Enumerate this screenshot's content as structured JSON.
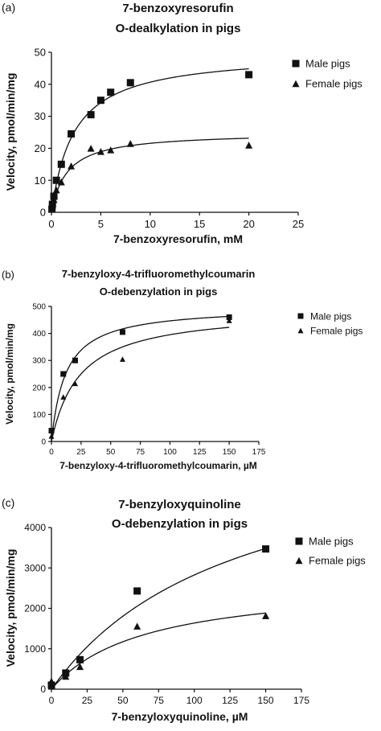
{
  "chart_data": [
    {
      "type": "scatter",
      "panel_label": "(a)",
      "title": [
        "7-benzoxyresorufin",
        "O-dealkylation in pigs"
      ],
      "xlabel": "7-benzoxyresorufin, mM",
      "ylabel": "Velocity, pmol/min/mg",
      "xlim": [
        0,
        25
      ],
      "ylim": [
        0,
        50
      ],
      "xticks": [
        0,
        5,
        10,
        15,
        20,
        25
      ],
      "yticks": [
        0,
        10,
        20,
        30,
        40,
        50
      ],
      "grid": false,
      "legend_position": "top-right",
      "fit": "michaelis-menten",
      "series": [
        {
          "name": "Male pigs",
          "marker": "square",
          "x": [
            0.05,
            0.1,
            0.25,
            0.5,
            1,
            2,
            4,
            5,
            6,
            8,
            20
          ],
          "y": [
            1,
            2.5,
            5,
            10,
            15,
            24.5,
            30.5,
            35,
            37.5,
            40.5,
            43
          ],
          "fit_vmax": 50,
          "fit_km": 2.3
        },
        {
          "name": "Female pigs",
          "marker": "triangle",
          "x": [
            0.05,
            0.1,
            0.25,
            0.5,
            1,
            2,
            4,
            5,
            6,
            8,
            20
          ],
          "y": [
            1,
            2,
            4,
            7,
            9.5,
            14.5,
            20,
            19,
            19.5,
            21.5,
            21
          ],
          "fit_vmax": 25,
          "fit_km": 1.6
        }
      ]
    },
    {
      "type": "scatter",
      "panel_label": "(b)",
      "title": [
        "7-benzyloxy-4-trifluoromethylcoumarin",
        "O-debenzylation in pigs"
      ],
      "xlabel": "7-benzyloxy-4-trifluoromethylcoumarin, µM",
      "ylabel": "Velocity, pmol/min/mg",
      "xlim": [
        0,
        175
      ],
      "ylim": [
        0,
        500
      ],
      "xticks": [
        0,
        25,
        50,
        75,
        100,
        125,
        150,
        175
      ],
      "yticks": [
        0,
        100,
        200,
        300,
        400,
        500
      ],
      "grid": false,
      "legend_position": "top-right",
      "fit": "michaelis-menten",
      "series": [
        {
          "name": "Male pigs",
          "marker": "square",
          "x": [
            0,
            10,
            20,
            60,
            150
          ],
          "y": [
            40,
            250,
            300,
            405,
            460
          ],
          "fit_vmax": 500,
          "fit_km": 12
        },
        {
          "name": "Female pigs",
          "marker": "triangle",
          "x": [
            0,
            10,
            20,
            60,
            150
          ],
          "y": [
            20,
            165,
            215,
            305,
            448
          ],
          "fit_vmax": 490,
          "fit_km": 24
        }
      ]
    },
    {
      "type": "scatter",
      "panel_label": "(c)",
      "title": [
        "7-benzyloxyquinoline",
        "O-debenzylation in pigs"
      ],
      "xlabel": "7-benzyloxyquinoline, µM",
      "ylabel": "Velocity, pmol/min/mg",
      "xlim": [
        0,
        175
      ],
      "ylim": [
        0,
        4000
      ],
      "xticks": [
        0,
        25,
        50,
        75,
        100,
        125,
        150,
        175
      ],
      "yticks": [
        0,
        1000,
        2000,
        3000,
        4000
      ],
      "grid": false,
      "legend_position": "top-right",
      "fit": "michaelis-menten",
      "series": [
        {
          "name": "Male pigs",
          "marker": "square",
          "x": [
            0,
            10,
            20,
            60,
            150
          ],
          "y": [
            100,
            400,
            730,
            2430,
            3470
          ],
          "fit_vmax": 6500,
          "fit_km": 130
        },
        {
          "name": "Female pigs",
          "marker": "triangle",
          "x": [
            0,
            10,
            20,
            60,
            150
          ],
          "y": [
            200,
            320,
            560,
            1560,
            1820
          ],
          "fit_vmax": 2700,
          "fit_km": 65
        }
      ]
    }
  ]
}
